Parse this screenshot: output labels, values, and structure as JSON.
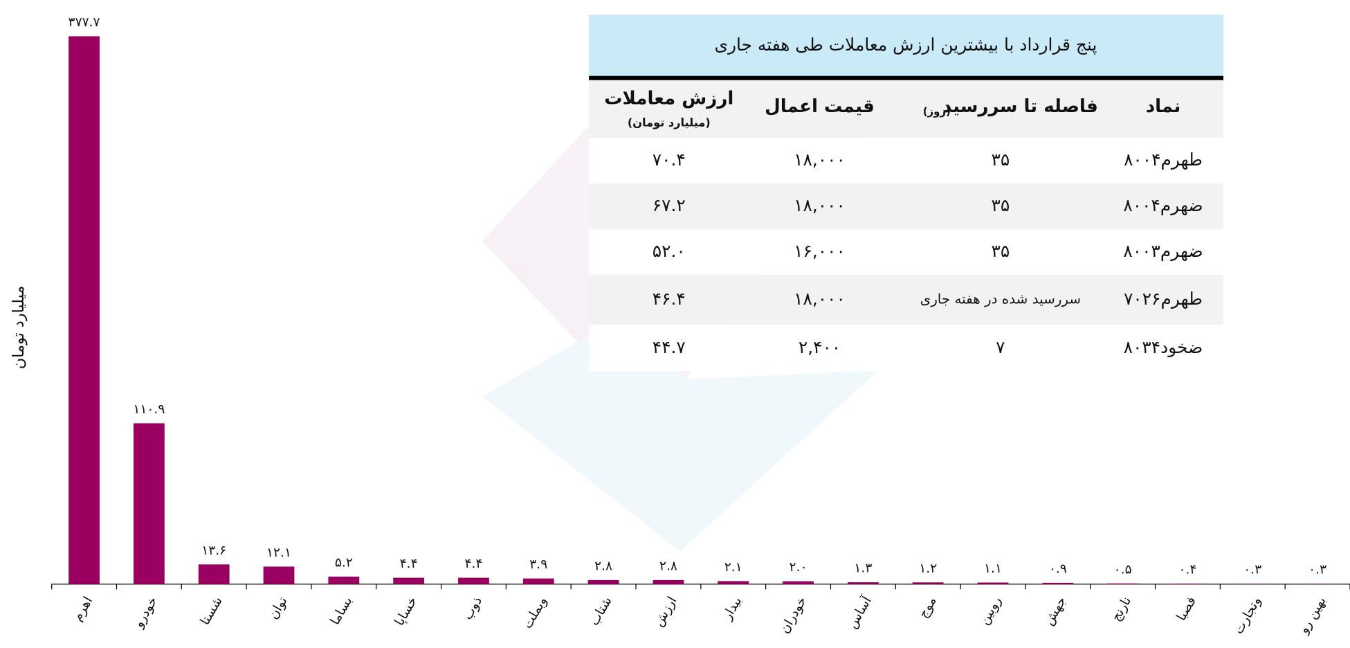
{
  "chart_data": {
    "type": "bar",
    "y_label": "میلیارد تومان",
    "categories": [
      "اهرم",
      "خودرو",
      "شستا",
      "توان",
      "بساما",
      "خساپا",
      "ذوب",
      "وبملت",
      "شتاب",
      "ارزش",
      "بیدار",
      "خودران",
      "آساس",
      "موج",
      "روبین",
      "جهش",
      "نارنج",
      "فصبا",
      "وتجارت",
      "بهین رو"
    ],
    "values": [
      377.7,
      110.9,
      13.6,
      12.1,
      5.2,
      4.4,
      4.4,
      3.9,
      2.8,
      2.8,
      2.1,
      2.0,
      1.3,
      1.2,
      1.1,
      0.9,
      0.5,
      0.4,
      0.3,
      0.3
    ],
    "value_labels": [
      "۳۷۷.۷",
      "۱۱۰.۹",
      "۱۳.۶",
      "۱۲.۱",
      "۵.۲",
      "۴.۴",
      "۴.۴",
      "۳.۹",
      "۲.۸",
      "۲.۸",
      "۲.۱",
      "۲.۰",
      "۱.۳",
      "۱.۲",
      "۱.۱",
      "۰.۹",
      "۰.۵",
      "۰.۴",
      "۰.۳",
      "۰.۳"
    ],
    "color": "#99005f",
    "ylim": [
      0,
      377.7
    ]
  },
  "table": {
    "title": "پنج قرارداد با بیشترین ارزش معاملات طی هفته جاری",
    "headers": [
      "نماد",
      "فاصله تا سررسید",
      "قیمت اعمال",
      "ارزش معاملات"
    ],
    "days_unit": "(روز)",
    "value_unit": "(میلیارد تومان)",
    "rows": [
      [
        "طهرم۸۰۰۴",
        "۳۵",
        "۱۸,۰۰۰",
        "۷۰.۴"
      ],
      [
        "ضهرم۸۰۰۴",
        "۳۵",
        "۱۸,۰۰۰",
        "۶۷.۲"
      ],
      [
        "ضهرم۸۰۰۳",
        "۳۵",
        "۱۶,۰۰۰",
        "۵۲.۰"
      ],
      [
        "طهرم۷۰۲۶",
        "سررسید شده در هفته جاری",
        "۱۸,۰۰۰",
        "۴۶.۴"
      ],
      [
        "ضخود۸۰۳۴",
        "۷",
        "۲,۴۰۰",
        "۴۴.۷"
      ]
    ]
  }
}
